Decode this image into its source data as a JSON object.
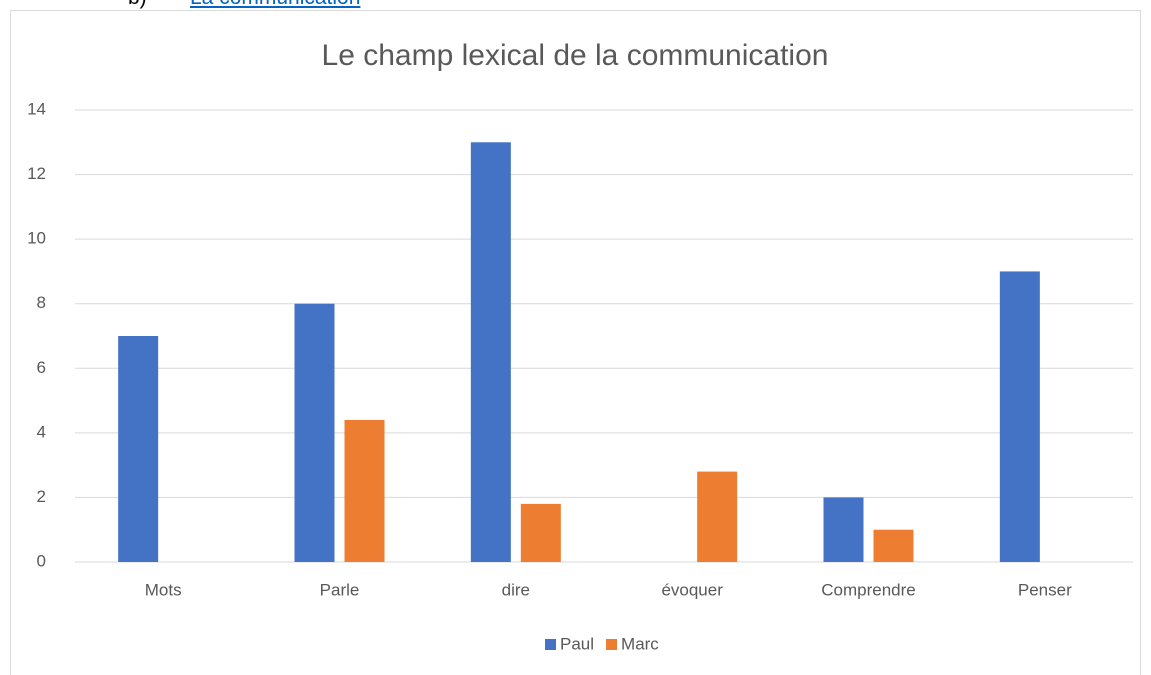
{
  "heading": {
    "marker": "b)",
    "text": "La communication"
  },
  "chart_data": {
    "type": "bar",
    "title": "Le champ lexical de la communication",
    "categories": [
      "Mots",
      "Parle",
      "dire",
      "évoquer",
      "Comprendre",
      "Penser"
    ],
    "series": [
      {
        "name": "Paul",
        "color": "#4472c4",
        "values": [
          7,
          8,
          13,
          null,
          2,
          9
        ]
      },
      {
        "name": "Marc",
        "color": "#ed7d31",
        "values": [
          null,
          4.4,
          1.8,
          2.8,
          1,
          null
        ]
      }
    ],
    "ylim": [
      0,
      14
    ],
    "yticks": [
      0,
      2,
      4,
      6,
      8,
      10,
      12,
      14
    ],
    "grid": true,
    "legend": "bottom"
  }
}
